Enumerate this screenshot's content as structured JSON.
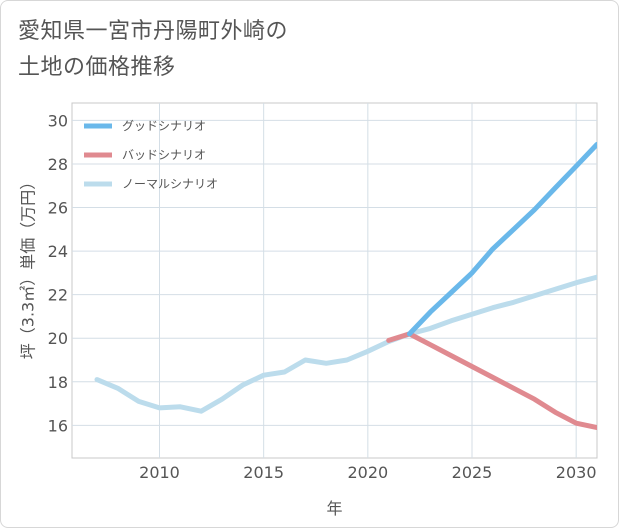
{
  "title_line1": "愛知県一宮市丹陽町外崎の",
  "title_line2": "土地の価格推移",
  "chart_data": {
    "type": "line",
    "xlabel": "年",
    "ylabel": "坪（3.3㎡）単価（万円）",
    "xlim": [
      2005.8,
      2031
    ],
    "ylim": [
      14.5,
      30.8
    ],
    "xticks": [
      2010,
      2015,
      2020,
      2025,
      2030
    ],
    "yticks": [
      16,
      18,
      20,
      22,
      24,
      26,
      28,
      30
    ],
    "grid": true,
    "legend_position": "top-left",
    "series": [
      {
        "name": "グッドシナリオ",
        "color": "#6ab8ea",
        "x": [
          2022,
          2023,
          2024,
          2025,
          2026,
          2027,
          2028,
          2029,
          2030,
          2031
        ],
        "y": [
          20.2,
          21.2,
          22.1,
          23.0,
          24.1,
          25.0,
          25.9,
          26.9,
          27.9,
          28.9
        ]
      },
      {
        "name": "バッドシナリオ",
        "color": "#e08a90",
        "x": [
          2021,
          2022,
          2023,
          2024,
          2025,
          2026,
          2027,
          2028,
          2029,
          2030,
          2031
        ],
        "y": [
          19.9,
          20.2,
          19.7,
          19.2,
          18.7,
          18.2,
          17.7,
          17.2,
          16.6,
          16.1,
          15.9
        ]
      },
      {
        "name": "ノーマルシナリオ",
        "color": "#bcdcec",
        "x": [
          2007,
          2008,
          2009,
          2010,
          2011,
          2012,
          2013,
          2014,
          2015,
          2016,
          2017,
          2018,
          2019,
          2020,
          2021,
          2022,
          2023,
          2024,
          2025,
          2026,
          2027,
          2028,
          2029,
          2030,
          2031
        ],
        "y": [
          18.1,
          17.7,
          17.1,
          16.8,
          16.85,
          16.65,
          17.2,
          17.85,
          18.3,
          18.45,
          19.0,
          18.85,
          19.0,
          19.4,
          19.85,
          20.2,
          20.45,
          20.8,
          21.1,
          21.4,
          21.65,
          21.95,
          22.25,
          22.55,
          22.8
        ]
      }
    ]
  }
}
